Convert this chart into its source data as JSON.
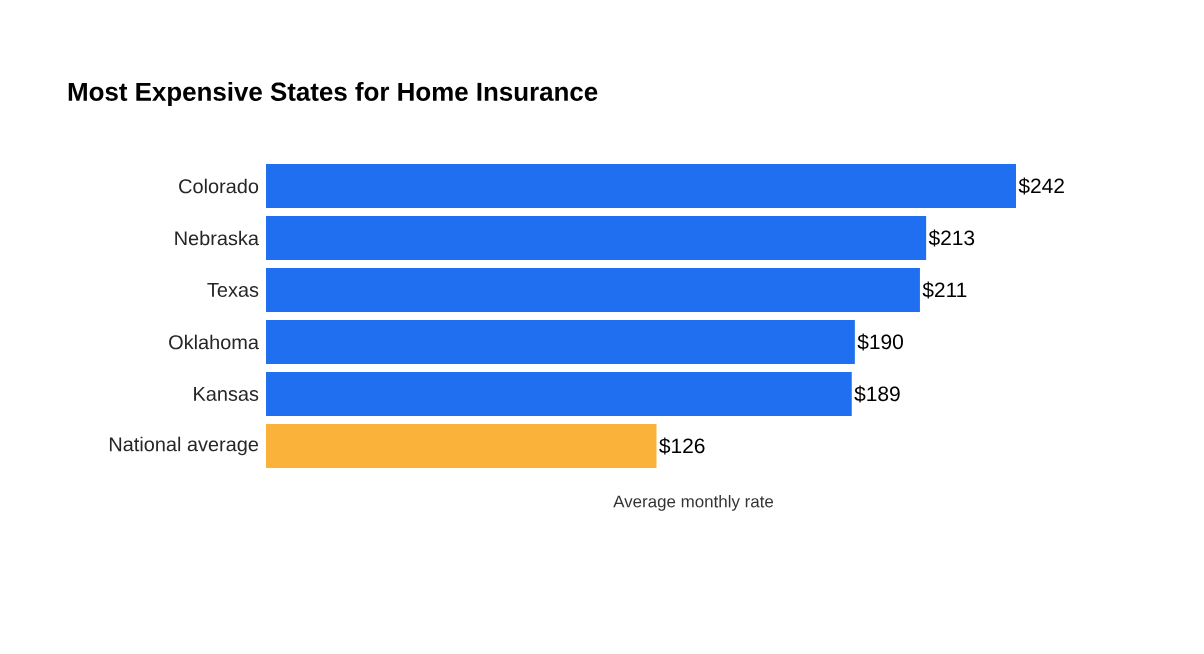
{
  "chart_data": {
    "type": "bar",
    "orientation": "horizontal",
    "title": "Most Expensive States for Home Insurance",
    "xlabel": "Average monthly rate",
    "categories": [
      "Colorado",
      "Nebraska",
      "Texas",
      "Oklahoma",
      "Kansas",
      "National average"
    ],
    "values": [
      242,
      213,
      211,
      190,
      189,
      126
    ],
    "colors": [
      "#1f6ff0",
      "#1f6ff0",
      "#1f6ff0",
      "#1f6ff0",
      "#1f6ff0",
      "#fbb23a"
    ],
    "value_labels": [
      "$242",
      "$213",
      "$211",
      "$190",
      "$189",
      "$126"
    ]
  }
}
